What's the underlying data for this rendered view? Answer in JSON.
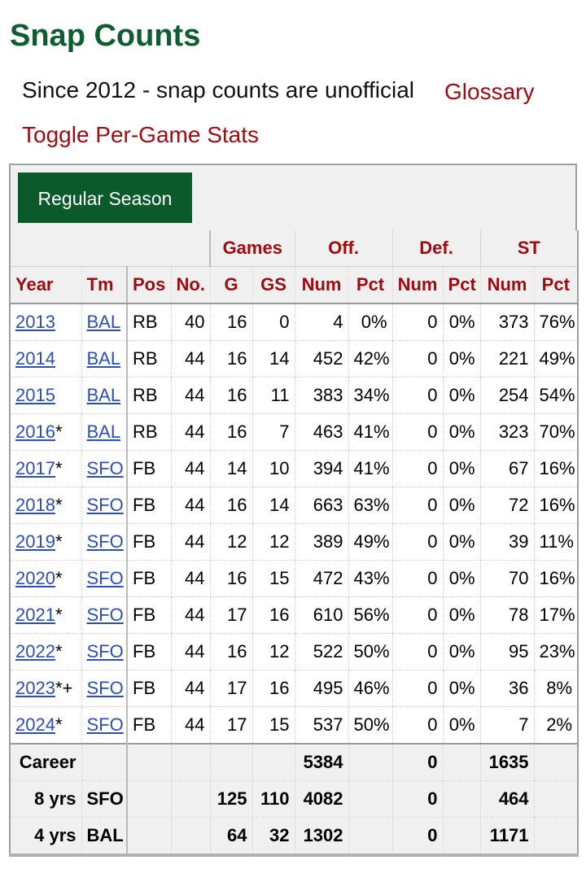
{
  "page": {
    "title": "Snap Counts",
    "note": "Since 2012 - snap counts are unofficial",
    "glossary_link": "Glossary",
    "toggle_link": "Toggle Per-Game Stats",
    "tab_label": "Regular Season"
  },
  "table": {
    "over_headers": {
      "games": "Games",
      "off": "Off.",
      "def": "Def.",
      "st": "ST"
    },
    "columns": [
      "Year",
      "Tm",
      "Pos",
      "No.",
      "G",
      "GS",
      "Num",
      "Pct",
      "Num",
      "Pct",
      "Num",
      "Pct"
    ],
    "rows": [
      {
        "year": "2013",
        "mark": "",
        "tm": "BAL",
        "pos": "RB",
        "no": "40",
        "g": "16",
        "gs": "0",
        "off_num": "4",
        "off_pct": "0%",
        "def_num": "0",
        "def_pct": "0%",
        "st_num": "373",
        "st_pct": "76%"
      },
      {
        "year": "2014",
        "mark": "",
        "tm": "BAL",
        "pos": "RB",
        "no": "44",
        "g": "16",
        "gs": "14",
        "off_num": "452",
        "off_pct": "42%",
        "def_num": "0",
        "def_pct": "0%",
        "st_num": "221",
        "st_pct": "49%"
      },
      {
        "year": "2015",
        "mark": "",
        "tm": "BAL",
        "pos": "RB",
        "no": "44",
        "g": "16",
        "gs": "11",
        "off_num": "383",
        "off_pct": "34%",
        "def_num": "0",
        "def_pct": "0%",
        "st_num": "254",
        "st_pct": "54%"
      },
      {
        "year": "2016",
        "mark": "*",
        "tm": "BAL",
        "pos": "RB",
        "no": "44",
        "g": "16",
        "gs": "7",
        "off_num": "463",
        "off_pct": "41%",
        "def_num": "0",
        "def_pct": "0%",
        "st_num": "323",
        "st_pct": "70%"
      },
      {
        "year": "2017",
        "mark": "*",
        "tm": "SFO",
        "pos": "FB",
        "no": "44",
        "g": "14",
        "gs": "10",
        "off_num": "394",
        "off_pct": "41%",
        "def_num": "0",
        "def_pct": "0%",
        "st_num": "67",
        "st_pct": "16%"
      },
      {
        "year": "2018",
        "mark": "*",
        "tm": "SFO",
        "pos": "FB",
        "no": "44",
        "g": "16",
        "gs": "14",
        "off_num": "663",
        "off_pct": "63%",
        "def_num": "0",
        "def_pct": "0%",
        "st_num": "72",
        "st_pct": "16%"
      },
      {
        "year": "2019",
        "mark": "*",
        "tm": "SFO",
        "pos": "FB",
        "no": "44",
        "g": "12",
        "gs": "12",
        "off_num": "389",
        "off_pct": "49%",
        "def_num": "0",
        "def_pct": "0%",
        "st_num": "39",
        "st_pct": "11%"
      },
      {
        "year": "2020",
        "mark": "*",
        "tm": "SFO",
        "pos": "FB",
        "no": "44",
        "g": "16",
        "gs": "15",
        "off_num": "472",
        "off_pct": "43%",
        "def_num": "0",
        "def_pct": "0%",
        "st_num": "70",
        "st_pct": "16%"
      },
      {
        "year": "2021",
        "mark": "*",
        "tm": "SFO",
        "pos": "FB",
        "no": "44",
        "g": "17",
        "gs": "16",
        "off_num": "610",
        "off_pct": "56%",
        "def_num": "0",
        "def_pct": "0%",
        "st_num": "78",
        "st_pct": "17%"
      },
      {
        "year": "2022",
        "mark": "*",
        "tm": "SFO",
        "pos": "FB",
        "no": "44",
        "g": "16",
        "gs": "12",
        "off_num": "522",
        "off_pct": "50%",
        "def_num": "0",
        "def_pct": "0%",
        "st_num": "95",
        "st_pct": "23%"
      },
      {
        "year": "2023",
        "mark": "*+",
        "tm": "SFO",
        "pos": "FB",
        "no": "44",
        "g": "17",
        "gs": "16",
        "off_num": "495",
        "off_pct": "46%",
        "def_num": "0",
        "def_pct": "0%",
        "st_num": "36",
        "st_pct": "8%"
      },
      {
        "year": "2024",
        "mark": "*",
        "tm": "SFO",
        "pos": "FB",
        "no": "44",
        "g": "17",
        "gs": "15",
        "off_num": "537",
        "off_pct": "50%",
        "def_num": "0",
        "def_pct": "0%",
        "st_num": "7",
        "st_pct": "2%"
      }
    ],
    "totals": [
      {
        "label": "Career",
        "tm": "",
        "g": "",
        "gs": "",
        "off_num": "5384",
        "def_num": "0",
        "st_num": "1635"
      },
      {
        "label": "8 yrs",
        "tm": "SFO",
        "g": "125",
        "gs": "110",
        "off_num": "4082",
        "def_num": "0",
        "st_num": "464"
      },
      {
        "label": "4 yrs",
        "tm": "BAL",
        "g": "64",
        "gs": "32",
        "off_num": "1302",
        "def_num": "0",
        "st_num": "1171"
      }
    ]
  },
  "colors": {
    "title": "#0f5c2e",
    "link_red": "#9e0b0f",
    "link_blue": "#2b4fb4",
    "tab_bg": "#0b5a2b"
  }
}
